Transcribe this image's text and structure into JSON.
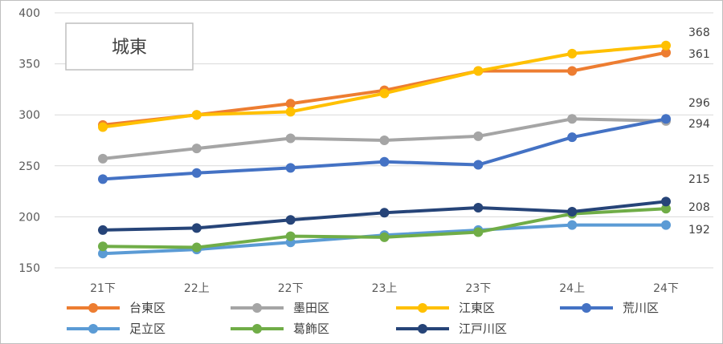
{
  "chart_data": {
    "type": "line",
    "title": "城東",
    "categories": [
      "21下",
      "22上",
      "22下",
      "23上",
      "23下",
      "24上",
      "24下"
    ],
    "ylim": [
      150,
      400
    ],
    "yticks": [
      150,
      200,
      250,
      300,
      350,
      400
    ],
    "grid": true,
    "legend_position": "bottom",
    "series": [
      {
        "name": "台東区",
        "color": "#ED7D31",
        "values": [
          290,
          300,
          311,
          324,
          343,
          343,
          361
        ]
      },
      {
        "name": "墨田区",
        "color": "#A5A5A5",
        "values": [
          257,
          267,
          277,
          275,
          279,
          296,
          294
        ]
      },
      {
        "name": "江東区",
        "color": "#FFC000",
        "values": [
          288,
          300,
          303,
          321,
          343,
          360,
          368
        ]
      },
      {
        "name": "荒川区",
        "color": "#4472C4",
        "values": [
          237,
          243,
          248,
          254,
          251,
          278,
          296
        ]
      },
      {
        "name": "足立区",
        "color": "#5B9BD5",
        "values": [
          164,
          168,
          175,
          182,
          187,
          192,
          192
        ]
      },
      {
        "name": "葛飾区",
        "color": "#70AD47",
        "values": [
          171,
          170,
          181,
          180,
          185,
          203,
          208
        ]
      },
      {
        "name": "江戸川区",
        "color": "#264478",
        "values": [
          187,
          189,
          197,
          204,
          209,
          205,
          215
        ]
      }
    ],
    "end_labels": [
      "368",
      "361",
      "296",
      "294",
      "215",
      "208",
      "192"
    ]
  }
}
